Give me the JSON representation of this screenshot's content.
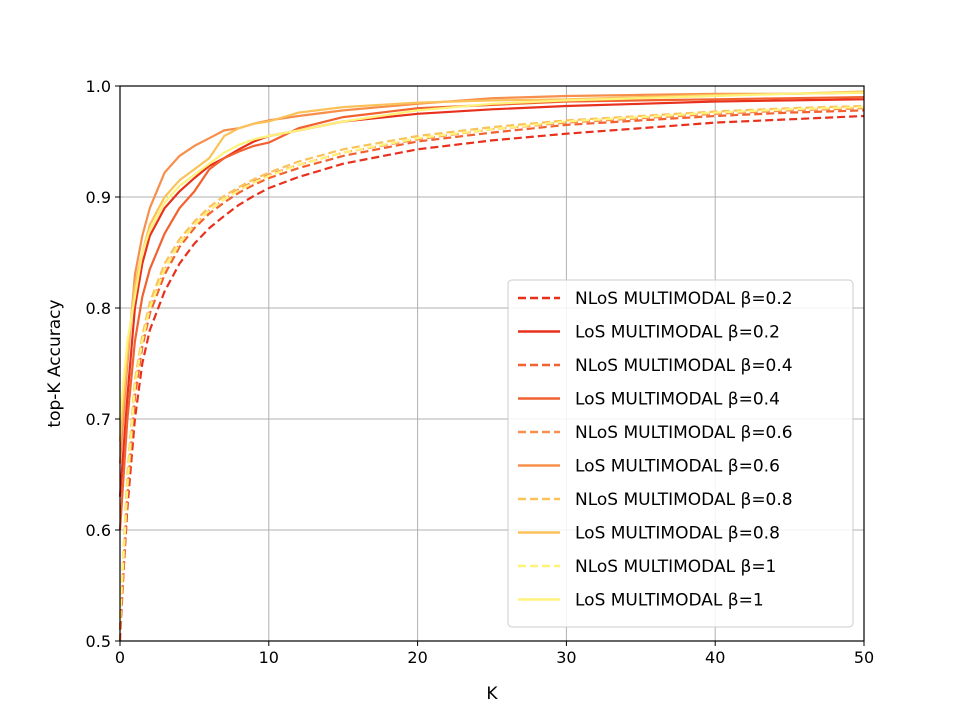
{
  "chart_data": {
    "type": "line",
    "title": "",
    "xlabel": "K",
    "ylabel": "top-K Accuracy",
    "xlim": [
      0,
      50
    ],
    "ylim": [
      0.5,
      1.0
    ],
    "xticks": [
      "0",
      "10",
      "20",
      "30",
      "40",
      "50"
    ],
    "yticks": [
      "0.5",
      "0.6",
      "0.7",
      "0.8",
      "0.9",
      "1.0"
    ],
    "grid": true,
    "legend_position": "lower-right",
    "series": [
      {
        "name": "NLoS MULTIMODAL β=0.2",
        "dashed": true,
        "color": "#e8301c",
        "x": [
          0,
          0.5,
          1,
          1.5,
          2,
          3,
          4,
          5,
          6,
          7,
          8,
          9,
          10,
          12,
          15,
          20,
          25,
          30,
          35,
          40,
          45,
          50
        ],
        "y": [
          0.51,
          0.62,
          0.7,
          0.75,
          0.78,
          0.815,
          0.84,
          0.858,
          0.872,
          0.883,
          0.893,
          0.901,
          0.908,
          0.918,
          0.93,
          0.943,
          0.951,
          0.957,
          0.962,
          0.967,
          0.97,
          0.973
        ]
      },
      {
        "name": "LoS MULTIMODAL β=0.2",
        "dashed": false,
        "color": "#e8301c",
        "x": [
          0,
          0.5,
          1,
          1.5,
          2,
          3,
          4,
          5,
          6,
          7,
          8,
          9,
          10,
          12,
          15,
          20,
          25,
          30,
          35,
          40,
          45,
          50
        ],
        "y": [
          0.63,
          0.72,
          0.8,
          0.84,
          0.865,
          0.89,
          0.905,
          0.917,
          0.928,
          0.935,
          0.943,
          0.95,
          0.955,
          0.96,
          0.968,
          0.975,
          0.979,
          0.982,
          0.984,
          0.986,
          0.987,
          0.988
        ]
      },
      {
        "name": "NLoS MULTIMODAL β=0.4",
        "dashed": true,
        "color": "#f26130",
        "x": [
          0,
          0.5,
          1,
          1.5,
          2,
          3,
          4,
          5,
          6,
          7,
          8,
          9,
          10,
          12,
          15,
          20,
          25,
          30,
          35,
          40,
          45,
          50
        ],
        "y": [
          0.5,
          0.63,
          0.72,
          0.765,
          0.795,
          0.83,
          0.855,
          0.872,
          0.885,
          0.895,
          0.904,
          0.911,
          0.917,
          0.926,
          0.937,
          0.95,
          0.958,
          0.965,
          0.969,
          0.973,
          0.976,
          0.978
        ]
      },
      {
        "name": "LoS MULTIMODAL β=0.4",
        "dashed": false,
        "color": "#f26130",
        "x": [
          0,
          0.5,
          1,
          1.5,
          2,
          3,
          4,
          5,
          6,
          7,
          8,
          9,
          10,
          12,
          15,
          20,
          25,
          30,
          35,
          40,
          45,
          50
        ],
        "y": [
          0.6,
          0.7,
          0.77,
          0.81,
          0.835,
          0.867,
          0.89,
          0.905,
          0.925,
          0.935,
          0.941,
          0.946,
          0.949,
          0.962,
          0.972,
          0.98,
          0.983,
          0.986,
          0.987,
          0.988,
          0.989,
          0.99
        ]
      },
      {
        "name": "NLoS MULTIMODAL β=0.6",
        "dashed": true,
        "color": "#f78f4c",
        "x": [
          0,
          0.5,
          1,
          1.5,
          2,
          3,
          4,
          5,
          6,
          7,
          8,
          9,
          10,
          12,
          15,
          20,
          25,
          30,
          35,
          40,
          45,
          50
        ],
        "y": [
          0.51,
          0.64,
          0.73,
          0.77,
          0.8,
          0.835,
          0.858,
          0.875,
          0.888,
          0.898,
          0.907,
          0.914,
          0.92,
          0.929,
          0.94,
          0.952,
          0.961,
          0.967,
          0.971,
          0.975,
          0.978,
          0.98
        ]
      },
      {
        "name": "LoS MULTIMODAL β=0.6",
        "dashed": false,
        "color": "#f78f4c",
        "x": [
          0,
          0.5,
          1,
          1.5,
          2,
          3,
          4,
          5,
          6,
          7,
          8,
          9,
          10,
          12,
          15,
          20,
          25,
          30,
          35,
          40,
          45,
          50
        ],
        "y": [
          0.66,
          0.75,
          0.83,
          0.865,
          0.89,
          0.922,
          0.937,
          0.946,
          0.953,
          0.96,
          0.962,
          0.966,
          0.969,
          0.973,
          0.978,
          0.984,
          0.989,
          0.991,
          0.992,
          0.993,
          0.993,
          0.994
        ]
      },
      {
        "name": "NLoS MULTIMODAL β=0.8",
        "dashed": true,
        "color": "#fbc25a",
        "x": [
          0,
          0.5,
          1,
          1.5,
          2,
          3,
          4,
          5,
          6,
          7,
          8,
          9,
          10,
          12,
          15,
          20,
          25,
          30,
          35,
          40,
          45,
          50
        ],
        "y": [
          0.52,
          0.65,
          0.735,
          0.775,
          0.805,
          0.84,
          0.862,
          0.878,
          0.891,
          0.901,
          0.909,
          0.916,
          0.922,
          0.932,
          0.943,
          0.955,
          0.963,
          0.969,
          0.973,
          0.977,
          0.98,
          0.982
        ]
      },
      {
        "name": "LoS MULTIMODAL β=0.8",
        "dashed": false,
        "color": "#fbc25a",
        "x": [
          0,
          0.5,
          1,
          1.5,
          2,
          3,
          4,
          5,
          6,
          7,
          8,
          9,
          10,
          12,
          15,
          20,
          25,
          30,
          35,
          40,
          45,
          50
        ],
        "y": [
          0.68,
          0.76,
          0.82,
          0.85,
          0.875,
          0.9,
          0.915,
          0.925,
          0.935,
          0.955,
          0.962,
          0.966,
          0.968,
          0.976,
          0.981,
          0.985,
          0.987,
          0.988,
          0.99,
          0.992,
          0.993,
          0.995
        ]
      },
      {
        "name": "NLoS MULTIMODAL β=1",
        "dashed": true,
        "color": "#fff27a",
        "x": [
          0,
          0.5,
          1,
          1.5,
          2,
          3,
          4,
          5,
          6,
          7,
          8,
          9,
          10,
          12,
          15,
          20,
          25,
          30,
          35,
          40,
          45,
          50
        ],
        "y": [
          0.52,
          0.64,
          0.73,
          0.77,
          0.8,
          0.835,
          0.858,
          0.875,
          0.888,
          0.898,
          0.906,
          0.913,
          0.919,
          0.929,
          0.94,
          0.953,
          0.961,
          0.968,
          0.972,
          0.976,
          0.979,
          0.981
        ]
      },
      {
        "name": "LoS MULTIMODAL β=1",
        "dashed": false,
        "color": "#fff27a",
        "x": [
          0,
          0.5,
          1,
          1.5,
          2,
          3,
          4,
          5,
          6,
          7,
          8,
          9,
          10,
          12,
          15,
          20,
          25,
          30,
          35,
          40,
          45,
          50
        ],
        "y": [
          0.7,
          0.77,
          0.81,
          0.85,
          0.87,
          0.895,
          0.91,
          0.92,
          0.93,
          0.94,
          0.947,
          0.952,
          0.955,
          0.96,
          0.968,
          0.978,
          0.984,
          0.987,
          0.989,
          0.991,
          0.993,
          0.994
        ]
      }
    ]
  }
}
